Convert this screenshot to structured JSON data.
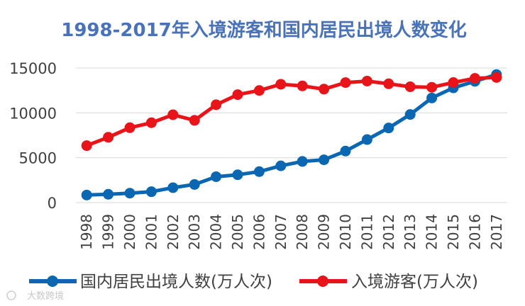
{
  "chart_data": {
    "type": "line",
    "title": "1998-2017年入境游客和国内居民出境人数变化",
    "xlabel": "",
    "ylabel": "",
    "x": [
      "1998",
      "1999",
      "2000",
      "2001",
      "2002",
      "2003",
      "2004",
      "2005",
      "2006",
      "2007",
      "2008",
      "2009",
      "2010",
      "2011",
      "2012",
      "2013",
      "2014",
      "2015",
      "2016",
      "2017"
    ],
    "ylim": [
      0,
      15000
    ],
    "yticks": [
      0,
      5000,
      10000,
      15000
    ],
    "grid": true,
    "legend_position": "bottom",
    "series": [
      {
        "name": "国内居民出境人数(万人次)",
        "color": "#0b67b2",
        "values": [
          842,
          923,
          1047,
          1213,
          1660,
          2022,
          2885,
          3103,
          3452,
          4095,
          4584,
          4766,
          5739,
          7025,
          8318,
          9819,
          11659,
          12786,
          13513,
          14273
        ]
      },
      {
        "name": "入境游客(万人次)",
        "color": "#e8141a",
        "values": [
          6348,
          7280,
          8344,
          8901,
          9791,
          9166,
          10904,
          12029,
          12494,
          13187,
          13003,
          12648,
          13376,
          13542,
          13241,
          12908,
          12850,
          13382,
          13844,
          13948
        ]
      }
    ]
  },
  "watermark": {
    "text": "大数跨境"
  }
}
